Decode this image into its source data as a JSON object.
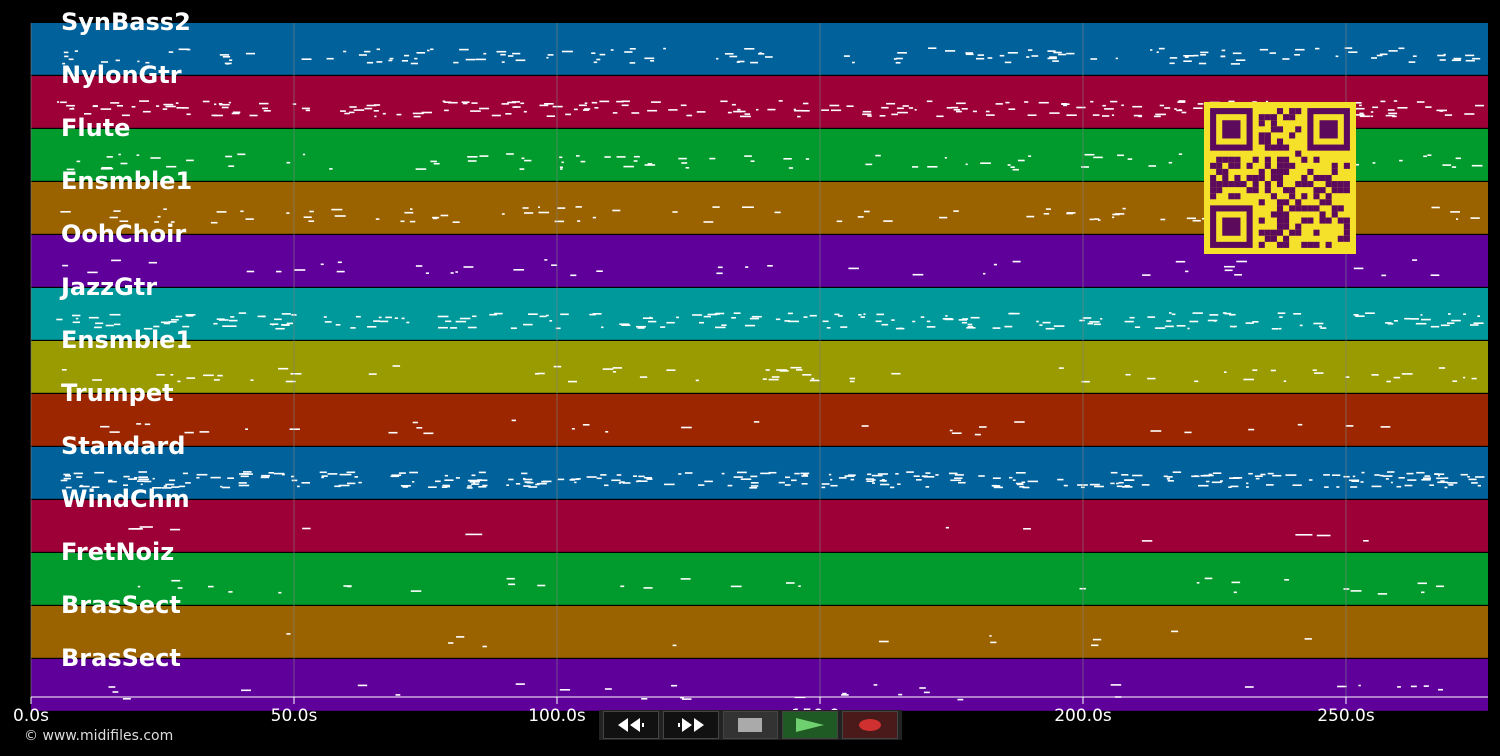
{
  "timeline": {
    "tick_labels": [
      "0.0s",
      "50.0s",
      "100.0s",
      "150.0s",
      "200.0s",
      "250.0s"
    ],
    "tick_seconds": [
      0,
      50,
      100,
      150,
      200,
      250
    ],
    "visible_range_seconds": [
      0,
      277
    ]
  },
  "tracks": [
    {
      "name": "SynBass2",
      "color": "#00619b"
    },
    {
      "name": "NylonGtr",
      "color": "#9c0036"
    },
    {
      "name": "Flute",
      "color": "#009b2c"
    },
    {
      "name": "Ensmble1",
      "color": "#9b6300"
    },
    {
      "name": "OohChoir",
      "color": "#60009b"
    },
    {
      "name": "JazzGtr",
      "color": "#00999b"
    },
    {
      "name": "Ensmble1",
      "color": "#999b00"
    },
    {
      "name": "Trumpet",
      "color": "#9b2600"
    },
    {
      "name": "Standard",
      "color": "#00619b"
    },
    {
      "name": "WindChm",
      "color": "#9c0036"
    },
    {
      "name": "FretNoiz",
      "color": "#009b2c"
    },
    {
      "name": "BrasSect",
      "color": "#9b6300"
    },
    {
      "name": "BrasSect",
      "color": "#60009b"
    }
  ],
  "transport": {
    "rewind": "rewind-icon",
    "fast_forward": "fast-forward-icon",
    "stop": "stop-icon",
    "play": "play-icon",
    "record": "record-icon"
  },
  "copyright": "© www.midifiles.com",
  "colors": {
    "background": "#000000",
    "grid": "#7f7f7f",
    "note": "#ffffff",
    "qr_fg": "#5c0a5c",
    "qr_bg": "#f5e12a"
  }
}
